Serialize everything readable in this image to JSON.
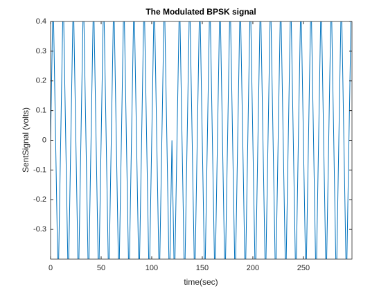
{
  "chart_data": {
    "type": "line",
    "title": "The Modulated BPSK signal",
    "xlabel": "time(sec)",
    "ylabel": "SentSignal (volts)",
    "xlim": [
      0,
      298
    ],
    "ylim": [
      -0.4,
      0.4
    ],
    "xticks": [
      0,
      50,
      100,
      150,
      200,
      250
    ],
    "yticks": [
      -0.3,
      -0.2,
      -0.1,
      0,
      0.1,
      0.2,
      0.3,
      0.4
    ],
    "series": [
      {
        "color": "#0072bd",
        "x": [
          0,
          2.5,
          5,
          7.5,
          10,
          12.5,
          15,
          17.5,
          20,
          22.5,
          25,
          27.5,
          30,
          32.5,
          35,
          37.5,
          40,
          42.5,
          45,
          47.5,
          50,
          52.5,
          55,
          57.5,
          60,
          62.5,
          65,
          67.5,
          70,
          72.5,
          75,
          77.5,
          80,
          82.5,
          85,
          87.5,
          90,
          92.5,
          95,
          97.5,
          100,
          102.5,
          105,
          107.5,
          110,
          112.5,
          115,
          117.5,
          120,
          122.5,
          125,
          127.5,
          130,
          132.5,
          135,
          137.5,
          140,
          142.5,
          145,
          147.5,
          150,
          152.5,
          155,
          157.5,
          160,
          162.5,
          165,
          167.5,
          170,
          172.5,
          175,
          177.5,
          180,
          182.5,
          185,
          187.5,
          190,
          192.5,
          195,
          197.5,
          200,
          202.5,
          205,
          207.5,
          210,
          212.5,
          215,
          217.5,
          220,
          222.5,
          225,
          227.5,
          230,
          232.5,
          235,
          237.5,
          240,
          242.5,
          245,
          247.5,
          250,
          252.5,
          255,
          257.5,
          260,
          262.5,
          265,
          267.5,
          270,
          272.5,
          275,
          277.5,
          280,
          282.5,
          285,
          287.5,
          290,
          292.5,
          295,
          297.5
        ],
        "values": [
          0,
          0.5,
          0,
          -0.5,
          0,
          0.5,
          0,
          -0.5,
          0,
          0.5,
          0,
          -0.5,
          0,
          0.5,
          0,
          -0.5,
          0,
          0.5,
          0,
          -0.5,
          0,
          0.5,
          0,
          -0.5,
          0,
          0.5,
          0,
          -0.5,
          0,
          0.5,
          0,
          -0.5,
          0,
          0.5,
          0,
          -0.5,
          0,
          0.5,
          0,
          -0.5,
          0,
          0.5,
          0,
          -0.5,
          0,
          0.5,
          0,
          -0.5,
          0,
          -0.5,
          0,
          0.5,
          0,
          -0.5,
          0,
          0.5,
          0,
          -0.5,
          0,
          0.5,
          0,
          -0.5,
          0,
          0.5,
          0,
          -0.5,
          0,
          0.5,
          0,
          -0.5,
          0,
          0.5,
          0,
          -0.5,
          0,
          0.5,
          0,
          -0.5,
          0,
          0.5,
          0,
          -0.5,
          0,
          0.5,
          0,
          -0.5,
          0,
          0.5,
          0,
          -0.5,
          0,
          0.5,
          0,
          -0.5,
          0,
          0.5,
          0,
          -0.5,
          0,
          0.5,
          0,
          -0.5,
          0,
          0.5,
          0,
          -0.5,
          0,
          0.5,
          0,
          -0.5,
          0,
          0.5,
          0,
          -0.5,
          0,
          0.5,
          0,
          -0.5,
          0,
          0.5
        ]
      }
    ]
  }
}
